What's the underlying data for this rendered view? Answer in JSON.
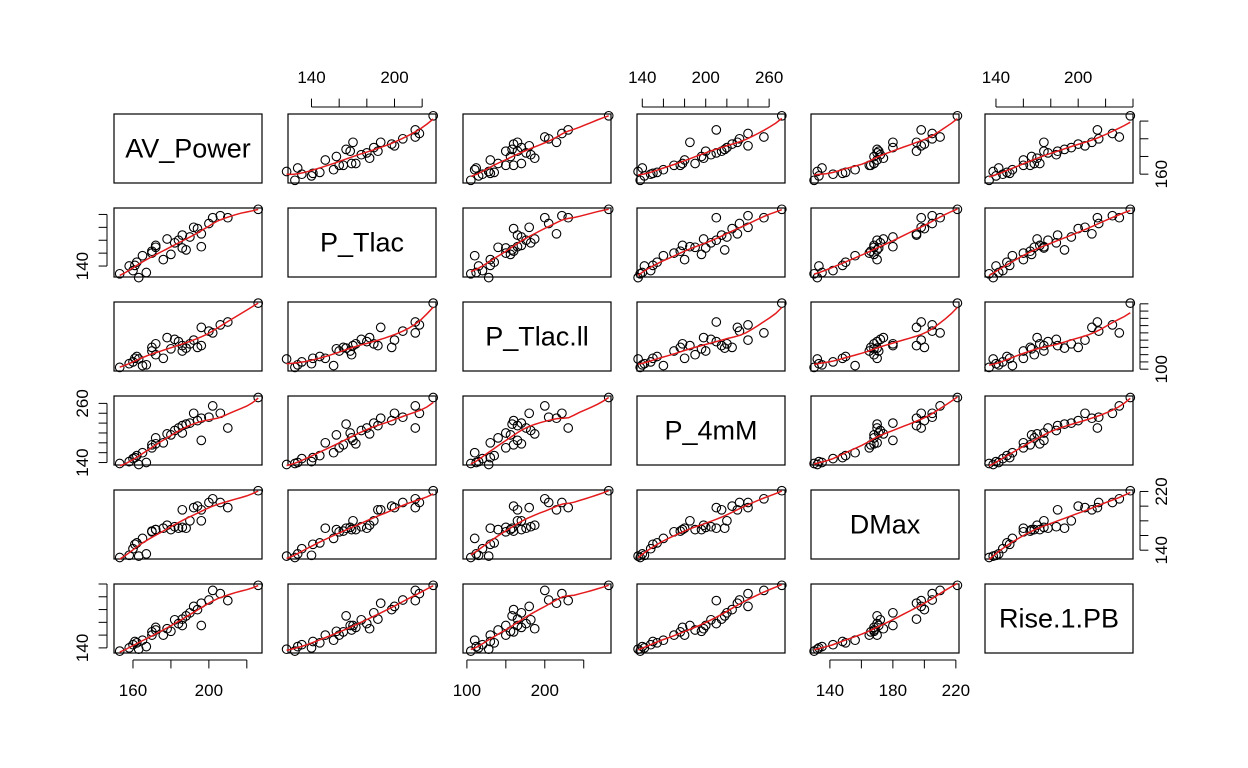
{
  "chart_data": {
    "type": "scatter",
    "subtype": "scatterplot-matrix",
    "title": "",
    "smoother_color": "#e41a1c",
    "point_color": "#000000",
    "variables": [
      {
        "name": "AV_Power",
        "range": [
          150,
          228
        ],
        "ticks": [
          160,
          200
        ]
      },
      {
        "name": "P_Tlac",
        "range": [
          123,
          230
        ],
        "ticks": [
          140,
          200
        ]
      },
      {
        "name": "P_Tlac.ll",
        "range": [
          95,
          285
        ],
        "ticks": [
          100,
          200
        ]
      },
      {
        "name": "P_4mM",
        "range": [
          135,
          275
        ],
        "ticks": [
          140,
          200,
          260
        ]
      },
      {
        "name": "DMax",
        "range": [
          128,
          222
        ],
        "ticks": [
          140,
          180,
          220
        ]
      },
      {
        "name": "Rise.1.PB",
        "range": [
          132,
          240
        ],
        "ticks": [
          140,
          200
        ]
      }
    ],
    "tick_placement": {
      "top": {
        "1": [
          140,
          200
        ],
        "3": [
          140,
          200,
          260
        ],
        "5": [
          140,
          200
        ]
      },
      "bottom": {
        "0": [
          160,
          200
        ],
        "2": [
          100,
          200
        ],
        "4": [
          140,
          180,
          220
        ]
      },
      "left": {
        "1": [
          140
        ],
        "3": [
          140,
          260
        ],
        "5": [
          140
        ]
      },
      "right": {
        "0": [
          160
        ],
        "2": [
          100
        ],
        "4": [
          140,
          220
        ]
      }
    },
    "observations": [
      [
        153,
        128,
        105,
        138,
        130,
        135
      ],
      [
        158,
        140,
        115,
        142,
        133,
        140
      ],
      [
        160,
        133,
        120,
        148,
        142,
        145
      ],
      [
        161,
        141,
        130,
        150,
        148,
        150
      ],
      [
        162,
        146,
        135,
        154,
        150,
        148
      ],
      [
        163,
        122,
        128,
        136,
        132,
        138
      ],
      [
        165,
        156,
        110,
        160,
        156,
        152
      ],
      [
        167,
        130,
        112,
        140,
        135,
        142
      ],
      [
        170,
        160,
        150,
        170,
        165,
        160
      ],
      [
        170,
        163,
        160,
        176,
        166,
        165
      ],
      [
        172,
        172,
        170,
        178,
        168,
        172
      ],
      [
        172,
        169,
        140,
        190,
        168,
        168
      ],
      [
        176,
        150,
        130,
        180,
        170,
        160
      ],
      [
        180,
        158,
        156,
        196,
        168,
        166
      ],
      [
        182,
        176,
        182,
        205,
        172,
        184
      ],
      [
        184,
        180,
        176,
        210,
        170,
        178
      ],
      [
        186,
        168,
        150,
        200,
        171,
        175
      ],
      [
        186,
        188,
        165,
        215,
        195,
        185
      ],
      [
        188,
        165,
        158,
        218,
        170,
        190
      ],
      [
        190,
        185,
        170,
        220,
        180,
        195
      ],
      [
        192,
        200,
        180,
        240,
        198,
        205
      ],
      [
        194,
        198,
        160,
        225,
        200,
        200
      ],
      [
        196,
        190,
        215,
        230,
        195,
        210
      ],
      [
        200,
        206,
        205,
        232,
        205,
        215
      ],
      [
        202,
        215,
        200,
        255,
        210,
        230
      ],
      [
        206,
        218,
        222,
        240,
        205,
        225
      ],
      [
        210,
        215,
        230,
        210,
        198,
        214
      ],
      [
        226,
        228,
        282,
        272,
        221,
        238
      ],
      [
        196,
        170,
        165,
        185,
        180,
        175
      ],
      [
        178,
        182,
        187,
        198,
        174,
        170
      ]
    ]
  }
}
